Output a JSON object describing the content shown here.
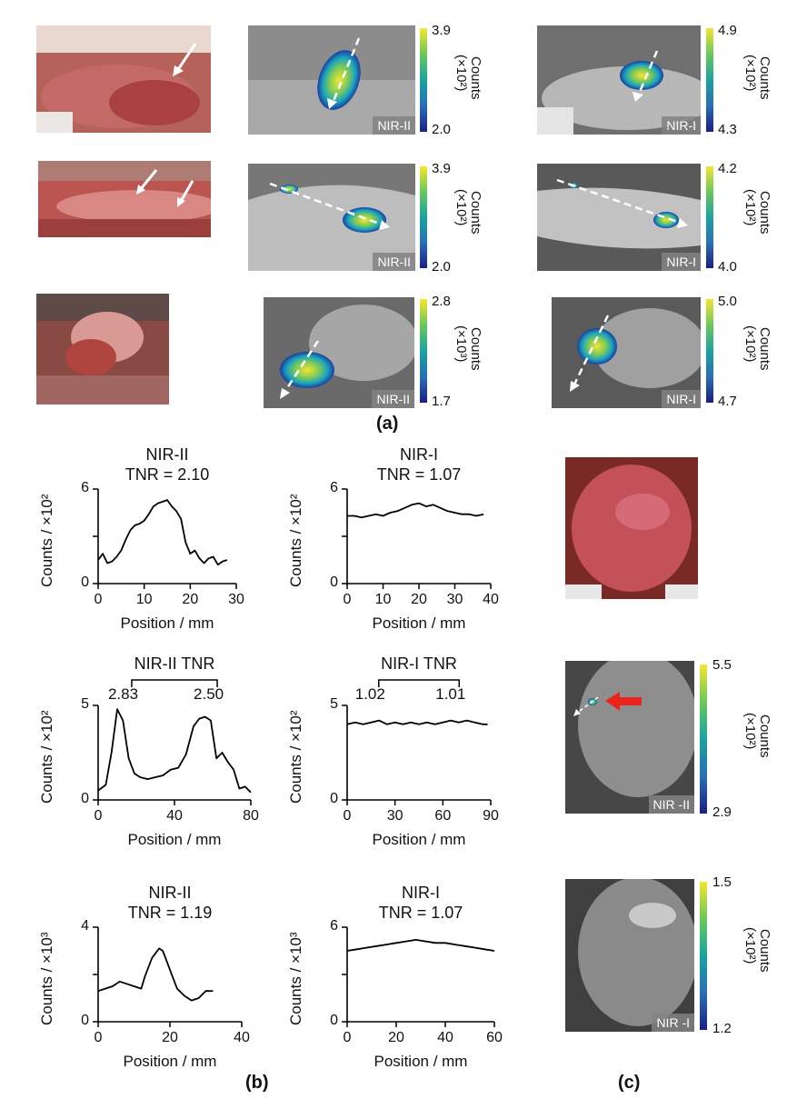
{
  "panel_labels": {
    "a": "(a)",
    "b": "(b)",
    "c": "(c)"
  },
  "colorbar_title": "Counts",
  "channels": {
    "nir2": "NIR-II",
    "nir1": "NIR-I",
    "nir2_c": "NIR -II",
    "nir1_c": "NIR -I"
  },
  "row1": {
    "nir2": {
      "top": "3.9",
      "bottom": "2.0",
      "unit": "(×10²)"
    },
    "nir1": {
      "top": "4.9",
      "bottom": "4.3",
      "unit": "(×10²)"
    }
  },
  "row2": {
    "nir2": {
      "top": "3.9",
      "bottom": "2.0",
      "unit": "(×10²)"
    },
    "nir1": {
      "top": "4.2",
      "bottom": "4.0",
      "unit": "(×10²)"
    }
  },
  "row3": {
    "nir2": {
      "top": "2.8",
      "bottom": "1.7",
      "unit": "(×10³)"
    },
    "nir1": {
      "top": "5.0",
      "bottom": "4.7",
      "unit": "(×10²)"
    }
  },
  "panel_c": {
    "nir2": {
      "top": "5.5",
      "bottom": "2.9",
      "unit": "(×10²)"
    },
    "nir1": {
      "top": "1.5",
      "bottom": "1.2",
      "unit": "(×10²)"
    }
  },
  "chart_data": [
    {
      "id": "p1",
      "type": "line",
      "title": [
        "NIR-II",
        "TNR = 2.10"
      ],
      "xlabel": "Position / mm",
      "ylabel": "Counts / ×10²",
      "xlim": [
        0,
        30
      ],
      "ylim": [
        0,
        6
      ],
      "xticks": [
        0,
        10,
        20,
        30
      ],
      "yticks": [
        0,
        3,
        6
      ],
      "ytick_labels": [
        "0",
        "",
        "6"
      ],
      "x": [
        0,
        1,
        2,
        3,
        4,
        5,
        6,
        7,
        8,
        9,
        10,
        11,
        12,
        13,
        14,
        15,
        16,
        17,
        18,
        19,
        20,
        21,
        22,
        23,
        24,
        25,
        26,
        27,
        28
      ],
      "y": [
        1.5,
        1.9,
        1.3,
        1.4,
        1.7,
        2.1,
        2.8,
        3.4,
        3.7,
        3.8,
        4.0,
        4.4,
        4.9,
        5.1,
        5.2,
        5.3,
        4.9,
        4.6,
        4.1,
        2.6,
        1.9,
        2.1,
        1.6,
        1.3,
        1.6,
        1.7,
        1.2,
        1.4,
        1.5
      ]
    },
    {
      "id": "p2",
      "type": "line",
      "title": [
        "NIR-I",
        "TNR = 1.07"
      ],
      "xlabel": "Position / mm",
      "ylabel": "Counts / ×10²",
      "xlim": [
        0,
        40
      ],
      "ylim": [
        0,
        6
      ],
      "xticks": [
        0,
        10,
        20,
        30,
        40
      ],
      "yticks": [
        0,
        3,
        6
      ],
      "ytick_labels": [
        "0",
        "",
        "6"
      ],
      "x": [
        0,
        2,
        4,
        6,
        8,
        10,
        12,
        14,
        16,
        18,
        20,
        22,
        24,
        26,
        28,
        30,
        32,
        34,
        36,
        38
      ],
      "y": [
        4.3,
        4.3,
        4.2,
        4.3,
        4.4,
        4.3,
        4.5,
        4.6,
        4.8,
        5.0,
        5.1,
        4.9,
        5.0,
        4.8,
        4.6,
        4.5,
        4.4,
        4.4,
        4.3,
        4.4
      ]
    },
    {
      "id": "p3",
      "type": "line",
      "title": [
        "NIR-II TNR"
      ],
      "xlabel": "Position / mm",
      "ylabel": "Counts / ×10²",
      "xlim": [
        0,
        80
      ],
      "ylim": [
        0,
        5
      ],
      "xticks": [
        0,
        40,
        80
      ],
      "yticks": [
        0,
        5
      ],
      "ytick_labels": [
        "0",
        "5"
      ],
      "tnr_left": "2.83",
      "tnr_right": "2.50",
      "x": [
        0,
        4,
        7,
        10,
        13,
        16,
        19,
        22,
        26,
        30,
        34,
        38,
        42,
        46,
        50,
        53,
        56,
        59,
        62,
        65,
        68,
        71,
        74,
        77,
        80
      ],
      "y": [
        0.5,
        0.8,
        2.5,
        4.8,
        4.2,
        2.2,
        1.4,
        1.2,
        1.1,
        1.2,
        1.3,
        1.6,
        1.7,
        2.4,
        3.9,
        4.3,
        4.4,
        4.2,
        2.2,
        2.5,
        2.0,
        1.6,
        0.6,
        0.7,
        0.4
      ]
    },
    {
      "id": "p4",
      "type": "line",
      "title": [
        "NIR-I TNR"
      ],
      "xlabel": "Position / mm",
      "ylabel": "Counts / ×10²",
      "xlim": [
        0,
        90
      ],
      "ylim": [
        0,
        5
      ],
      "xticks": [
        0,
        30,
        60,
        90
      ],
      "yticks": [
        0,
        5
      ],
      "ytick_labels": [
        "0",
        "5"
      ],
      "tnr_left": "1.02",
      "tnr_right": "1.01",
      "x": [
        0,
        5,
        10,
        15,
        20,
        25,
        30,
        35,
        40,
        45,
        50,
        55,
        60,
        65,
        70,
        75,
        80,
        85,
        88
      ],
      "y": [
        4.0,
        4.1,
        4.0,
        4.1,
        4.2,
        4.0,
        4.1,
        4.0,
        4.1,
        4.0,
        4.1,
        4.0,
        4.1,
        4.2,
        4.1,
        4.2,
        4.1,
        4.0,
        4.0
      ]
    },
    {
      "id": "p5",
      "type": "line",
      "title": [
        "NIR-II",
        "TNR = 1.19"
      ],
      "xlabel": "Position / mm",
      "ylabel": "Counts / ×10³",
      "xlim": [
        0,
        40
      ],
      "ylim": [
        0,
        4
      ],
      "xticks": [
        0,
        20,
        40
      ],
      "yticks": [
        0,
        2,
        4
      ],
      "ytick_labels": [
        "0",
        "",
        "4"
      ],
      "x": [
        0,
        2,
        4,
        6,
        8,
        10,
        12,
        13,
        14,
        15,
        16,
        17,
        18,
        19,
        20,
        21,
        22,
        24,
        26,
        28,
        30,
        32
      ],
      "y": [
        1.3,
        1.4,
        1.5,
        1.7,
        1.6,
        1.5,
        1.4,
        1.9,
        2.3,
        2.7,
        2.9,
        3.1,
        3.0,
        2.6,
        2.2,
        1.8,
        1.4,
        1.1,
        0.9,
        1.0,
        1.3,
        1.3
      ]
    },
    {
      "id": "p6",
      "type": "line",
      "title": [
        "NIR-I",
        "TNR = 1.07"
      ],
      "xlabel": "Position / mm",
      "ylabel": "Counts / ×10³",
      "xlim": [
        0,
        60
      ],
      "ylim": [
        0,
        6
      ],
      "xticks": [
        0,
        20,
        40,
        60
      ],
      "yticks": [
        0,
        3,
        6
      ],
      "ytick_labels": [
        "0",
        "",
        "6"
      ],
      "x": [
        0,
        4,
        8,
        12,
        16,
        20,
        24,
        28,
        32,
        36,
        40,
        44,
        48,
        52,
        56,
        60
      ],
      "y": [
        4.5,
        4.6,
        4.7,
        4.8,
        4.9,
        5.0,
        5.1,
        5.2,
        5.1,
        5.0,
        5.0,
        4.9,
        4.8,
        4.7,
        4.6,
        4.5
      ]
    }
  ]
}
